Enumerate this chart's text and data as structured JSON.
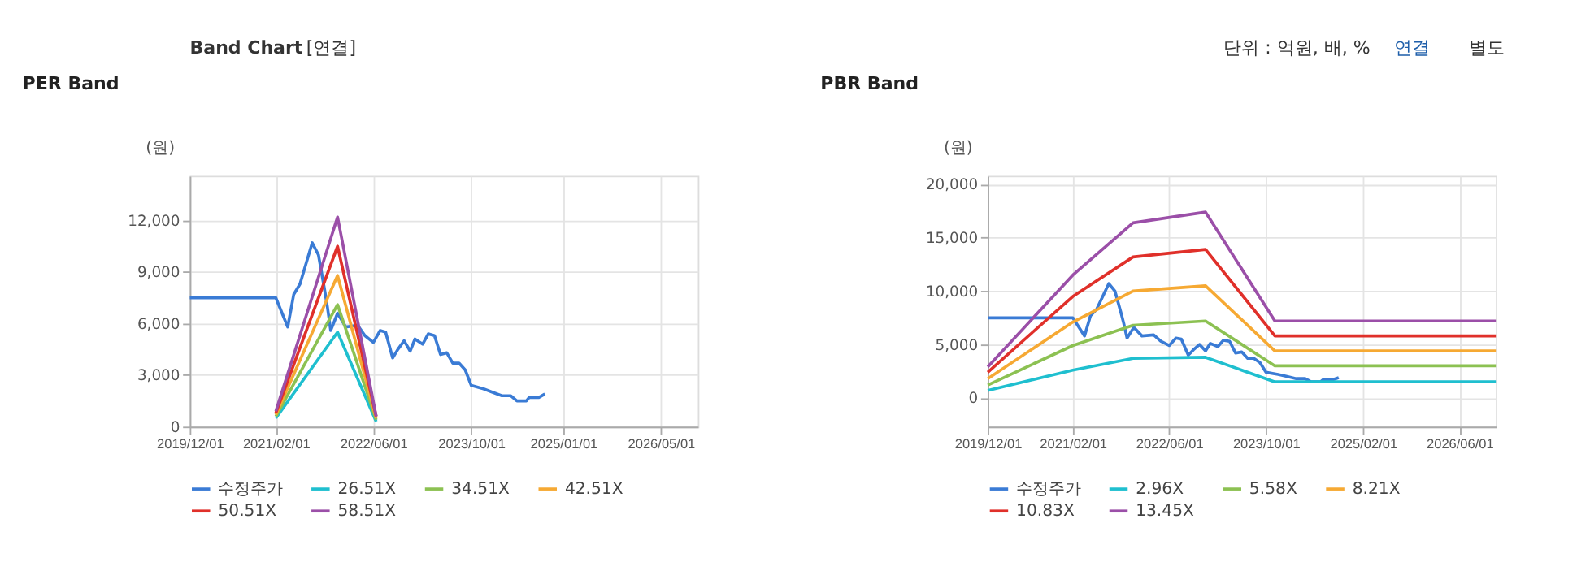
{
  "chart_data": [
    {
      "type": "line",
      "title": "PER Band",
      "ylabel": "(원)",
      "annotations": [
        "Band Chart",
        "[연결]",
        "단위 : 억원, 배, %",
        "연결",
        "별도"
      ],
      "xlim": [
        "2019-12-01",
        "2026-11-01"
      ],
      "ylim": [
        0,
        14600
      ],
      "yticks": [
        0,
        {
          "value": 3000,
          "label": "3,000"
        },
        {
          "value": 6000,
          "label": "6,000"
        },
        {
          "value": 9000,
          "label": "9,000"
        },
        {
          "value": 12000,
          "label": "12,000"
        }
      ],
      "xticks": [
        {
          "value": "2019-12-01",
          "label": "2019/12/01"
        },
        {
          "value": "2021-02-01",
          "label": "2021/02/01"
        },
        {
          "value": "2022-06-01",
          "label": "2022/06/01"
        },
        {
          "value": "2023-10-01",
          "label": "2023/10/01"
        },
        {
          "value": "2025-01-01",
          "label": "2025/01/01"
        },
        {
          "value": "2026-05-01",
          "label": "2026/05/01"
        }
      ],
      "grid": true,
      "legend": "bottom",
      "line_style": "solid",
      "marker": "none",
      "series": [
        {
          "name": "수정주가",
          "color": "#3a7bd5",
          "x": [
            "2019-12-01",
            "2021-02-01",
            "2021-04-01",
            "2021-05-01",
            "2021-06-01",
            "2021-08-01",
            "2021-09-01",
            "2021-10-01",
            "2021-10-15",
            "2021-11-01",
            "2021-12-05",
            "2022-01-15",
            "2022-03-15",
            "2022-04-20",
            "2022-06-01",
            "2022-07-05",
            "2022-08-01",
            "2022-09-05",
            "2022-10-01",
            "2022-11-01",
            "2022-12-01",
            "2022-12-25",
            "2023-02-01",
            "2023-03-01",
            "2023-04-01",
            "2023-05-01",
            "2023-06-01",
            "2023-07-01",
            "2023-08-01",
            "2023-09-01",
            "2023-10-01",
            "2023-12-01",
            "2024-01-15",
            "2024-03-01",
            "2024-04-15",
            "2024-05-15",
            "2024-07-01",
            "2024-07-15",
            "2024-09-01",
            "2024-10-01"
          ],
          "values": [
            7500,
            7500,
            5800,
            7700,
            8300,
            10700,
            10000,
            8000,
            7000,
            5600,
            6600,
            5800,
            5900,
            5300,
            4900,
            5600,
            5500,
            4000,
            4500,
            5000,
            4400,
            5100,
            4800,
            5400,
            5300,
            4200,
            4300,
            3700,
            3700,
            3300,
            2400,
            2200,
            2000,
            1800,
            1800,
            1500,
            1500,
            1700,
            1700,
            1900
          ]
        },
        {
          "name": "26.51X",
          "color": "#1fbfcf",
          "x": [
            "2021-02-01",
            "2021-12-05",
            "2022-06-15"
          ],
          "values": [
            500,
            5500,
            300
          ]
        },
        {
          "name": "34.51X",
          "color": "#8cc152",
          "x": [
            "2021-02-01",
            "2021-12-05",
            "2022-06-15"
          ],
          "values": [
            600,
            7100,
            400
          ]
        },
        {
          "name": "42.51X",
          "color": "#f6a933",
          "x": [
            "2021-02-01",
            "2021-12-05",
            "2022-06-15"
          ],
          "values": [
            700,
            8800,
            500
          ]
        },
        {
          "name": "50.51X",
          "color": "#e0302a",
          "x": [
            "2021-02-01",
            "2021-12-05",
            "2022-06-15"
          ],
          "values": [
            800,
            10500,
            600
          ]
        },
        {
          "name": "58.51X",
          "color": "#9b4fa8",
          "x": [
            "2021-02-01",
            "2021-12-05",
            "2022-06-15"
          ],
          "values": [
            900,
            12200,
            600
          ]
        }
      ]
    },
    {
      "type": "line",
      "title": "PBR Band",
      "ylabel": "(원)",
      "xlim": [
        "2019-12-01",
        "2026-12-01"
      ],
      "ylim": [
        -2700,
        20800
      ],
      "yticks": [
        0,
        {
          "value": 5000,
          "label": "5,000"
        },
        {
          "value": 10000,
          "label": "10,000"
        },
        {
          "value": 15000,
          "label": "15,000"
        },
        {
          "value": 20000,
          "label": "20,000"
        }
      ],
      "xticks": [
        {
          "value": "2019-12-01",
          "label": "2019/12/01"
        },
        {
          "value": "2021-02-01",
          "label": "2021/02/01"
        },
        {
          "value": "2022-06-01",
          "label": "2022/06/01"
        },
        {
          "value": "2023-10-01",
          "label": "2023/10/01"
        },
        {
          "value": "2025-02-01",
          "label": "2025/02/01"
        },
        {
          "value": "2026-06-01",
          "label": "2026/06/01"
        }
      ],
      "grid": true,
      "legend": "bottom",
      "line_style": "solid",
      "marker": "none",
      "series": [
        {
          "name": "수정주가",
          "color": "#3a7bd5",
          "x": [
            "2019-12-01",
            "2021-02-01",
            "2021-04-01",
            "2021-05-01",
            "2021-06-01",
            "2021-08-01",
            "2021-09-01",
            "2021-10-01",
            "2021-10-15",
            "2021-11-01",
            "2021-12-05",
            "2022-01-15",
            "2022-03-15",
            "2022-04-20",
            "2022-06-01",
            "2022-07-05",
            "2022-08-01",
            "2022-09-05",
            "2022-10-01",
            "2022-11-01",
            "2022-12-01",
            "2022-12-25",
            "2023-02-01",
            "2023-03-01",
            "2023-04-01",
            "2023-05-01",
            "2023-06-01",
            "2023-07-01",
            "2023-08-01",
            "2023-09-01",
            "2023-10-01",
            "2023-12-01",
            "2024-01-15",
            "2024-03-01",
            "2024-04-15",
            "2024-05-15",
            "2024-07-01",
            "2024-07-15",
            "2024-09-01",
            "2024-10-01"
          ],
          "values": [
            7500,
            7500,
            5800,
            7700,
            8300,
            10700,
            10000,
            8000,
            7000,
            5600,
            6600,
            5800,
            5900,
            5300,
            4900,
            5600,
            5500,
            4000,
            4500,
            5000,
            4400,
            5100,
            4800,
            5400,
            5300,
            4200,
            4300,
            3700,
            3700,
            3300,
            2400,
            2200,
            2000,
            1800,
            1800,
            1500,
            1500,
            1700,
            1700,
            1900
          ]
        },
        {
          "name": "2.96X",
          "color": "#1fbfcf",
          "x": [
            "2019-12-01",
            "2021-02-01",
            "2021-12-01",
            "2022-12-01",
            "2023-11-15",
            "2026-12-01"
          ],
          "values": [
            700,
            2600,
            3700,
            3800,
            1500,
            1500
          ]
        },
        {
          "name": "5.58X",
          "color": "#8cc152",
          "x": [
            "2019-12-01",
            "2021-02-01",
            "2021-12-01",
            "2022-12-01",
            "2023-11-15",
            "2026-12-01"
          ],
          "values": [
            1200,
            4900,
            6800,
            7200,
            3000,
            3000
          ]
        },
        {
          "name": "8.21X",
          "color": "#f6a933",
          "x": [
            "2019-12-01",
            "2021-02-01",
            "2021-12-01",
            "2022-12-01",
            "2023-11-15",
            "2026-12-01"
          ],
          "values": [
            1800,
            7100,
            10000,
            10500,
            4400,
            4400
          ]
        },
        {
          "name": "10.83X",
          "color": "#e0302a",
          "x": [
            "2019-12-01",
            "2021-02-01",
            "2021-12-01",
            "2022-12-01",
            "2023-11-15",
            "2026-12-01"
          ],
          "values": [
            2400,
            9500,
            13200,
            13900,
            5800,
            5800
          ]
        },
        {
          "name": "13.45X",
          "color": "#9b4fa8",
          "x": [
            "2019-12-01",
            "2021-02-01",
            "2021-12-01",
            "2022-12-01",
            "2023-11-15",
            "2026-12-01"
          ],
          "values": [
            2900,
            11500,
            16400,
            17400,
            7200,
            7200
          ]
        }
      ]
    }
  ]
}
